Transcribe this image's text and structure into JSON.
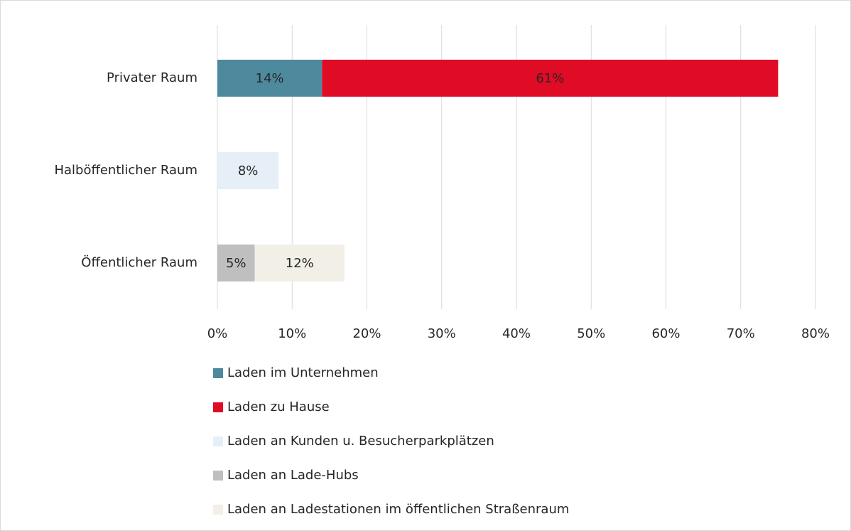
{
  "chart_data": {
    "type": "bar",
    "orientation": "horizontal",
    "stacked": true,
    "categories": [
      "Privater Raum",
      "Halböffentlicher Raum",
      "Öffentlicher Raum"
    ],
    "series": [
      {
        "name": "Laden im Unternehmen",
        "color": "#4e8a9e",
        "values": [
          14,
          null,
          null
        ],
        "value_labels": [
          "14%",
          null,
          null
        ]
      },
      {
        "name": "Laden zu Hause",
        "color": "#e00b24",
        "values": [
          61,
          null,
          null
        ],
        "value_labels": [
          "61%",
          null,
          null
        ]
      },
      {
        "name": "Laden an Kunden u. Besucherparkplätzen",
        "color": "#e6eff7",
        "values": [
          null,
          8.2,
          null
        ],
        "value_labels": [
          null,
          "8%",
          null
        ]
      },
      {
        "name": "Laden an Lade-Hubs",
        "color": "#bfbfbf",
        "values": [
          null,
          null,
          5
        ],
        "value_labels": [
          null,
          null,
          "5%"
        ]
      },
      {
        "name": "Laden an Ladestationen im öffentlichen Straßenraum",
        "color": "#f2f0e6",
        "values": [
          null,
          null,
          12
        ],
        "value_labels": [
          null,
          null,
          "12%"
        ]
      }
    ],
    "xlim": [
      0,
      80
    ],
    "xticks": [
      {
        "value": 0,
        "label": "0%"
      },
      {
        "value": 10,
        "label": "10%"
      },
      {
        "value": 20,
        "label": "20%"
      },
      {
        "value": 30,
        "label": "30%"
      },
      {
        "value": 40,
        "label": "40%"
      },
      {
        "value": 50,
        "label": "50%"
      },
      {
        "value": 60,
        "label": "60%"
      },
      {
        "value": 70,
        "label": "70%"
      },
      {
        "value": 80,
        "label": "80%"
      }
    ],
    "grid": true,
    "legend": "bottom"
  }
}
